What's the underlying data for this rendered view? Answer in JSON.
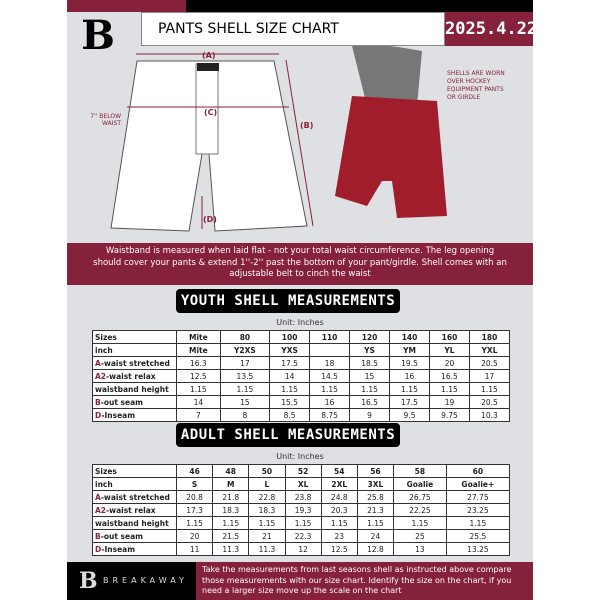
{
  "header": {
    "title": "PANTS SHELL SIZE CHART",
    "date": "2025.4.22"
  },
  "diagram": {
    "label_a": "(A)",
    "label_b": "(B)",
    "label_c": "(C)",
    "label_d": "(D)",
    "below_waist": "7'' BELOW WAIST",
    "note": "SHELLS ARE WORN OVER HOCKEY EQUIPMENT PANTS OR GIRDLE"
  },
  "info": "Waistband is measured when laid flat - not your total waist circumference. The leg opening should cover your pants & extend 1''-2'' past the bottom of your pant/girdle. Shell comes with an adjustable belt to cinch the waist",
  "youth": {
    "heading": "YOUTH SHELL MEASUREMENTS",
    "unit": "Unit: Inches",
    "rows": [
      {
        "code": "",
        "label": "Sizes",
        "values": [
          "Mite",
          "80",
          "100",
          "110",
          "120",
          "140",
          "160",
          "180"
        ]
      },
      {
        "code": "",
        "label": "inch",
        "values": [
          "Mite",
          "Y2XS",
          "YXS",
          "",
          "YS",
          "YM",
          "YL",
          "YXL"
        ]
      },
      {
        "code": "A",
        "label": "-waist stretched",
        "values": [
          "16.3",
          "17",
          "17.5",
          "18",
          "18.5",
          "19.5",
          "20",
          "20.5"
        ]
      },
      {
        "code": "A2",
        "label": "-waist relax",
        "values": [
          "12.5",
          "13.5",
          "14",
          "14.5",
          "15",
          "16",
          "16.5",
          "17"
        ]
      },
      {
        "code": "",
        "label": "waistband height",
        "values": [
          "1.15",
          "1.15",
          "1.15",
          "1.15",
          "1.15",
          "1.15",
          "1.15",
          "1.15"
        ]
      },
      {
        "code": "B",
        "label": "-out seam",
        "values": [
          "14",
          "15",
          "15.5",
          "16",
          "16.5",
          "17.5",
          "19",
          "20.5"
        ]
      },
      {
        "code": "D",
        "label": "-Inseam",
        "values": [
          "7",
          "8",
          "8.5",
          "8.75",
          "9",
          "9.5",
          "9.75",
          "10.3"
        ]
      }
    ]
  },
  "adult": {
    "heading": "ADULT SHELL MEASUREMENTS",
    "unit": "Unit: Inches",
    "rows": [
      {
        "code": "",
        "label": "Sizes",
        "values": [
          "46",
          "48",
          "50",
          "52",
          "54",
          "56",
          "58",
          "60"
        ]
      },
      {
        "code": "",
        "label": "inch",
        "values": [
          "S",
          "M",
          "L",
          "XL",
          "2XL",
          "3XL",
          "Goalie",
          "Goalie+"
        ]
      },
      {
        "code": "A",
        "label": "-waist stretched",
        "values": [
          "20.8",
          "21.8",
          "22.8",
          "23.8",
          "24.8",
          "25.8",
          "26.75",
          "27.75"
        ]
      },
      {
        "code": "A2",
        "label": "-waist relax",
        "values": [
          "17.3",
          "18.3",
          "18.3",
          "19.3",
          "20.3",
          "21.3",
          "22.25",
          "23.25"
        ]
      },
      {
        "code": "",
        "label": "waistband height",
        "values": [
          "1.15",
          "1.15",
          "1.15",
          "1.15",
          "1.15",
          "1.15",
          "1.15",
          "1.15"
        ]
      },
      {
        "code": "B",
        "label": "-out seam",
        "values": [
          "20",
          "21.5",
          "21",
          "22.3",
          "23",
          "24",
          "25",
          "25.5"
        ]
      },
      {
        "code": "D",
        "label": "-Inseam",
        "values": [
          "11",
          "11.3",
          "11.3",
          "12",
          "12.5",
          "12.8",
          "13",
          "13.25"
        ]
      }
    ]
  },
  "footer": {
    "brand": "BREAKAWAY",
    "text": "Take the measurements from last seasons shell as instructed above compare those measurements  with our size chart. Identify the size on the chart, if you need a larger size move up the scale on the chart"
  },
  "colors": {
    "accent": "#86213b",
    "background": "#dfe0e3"
  }
}
